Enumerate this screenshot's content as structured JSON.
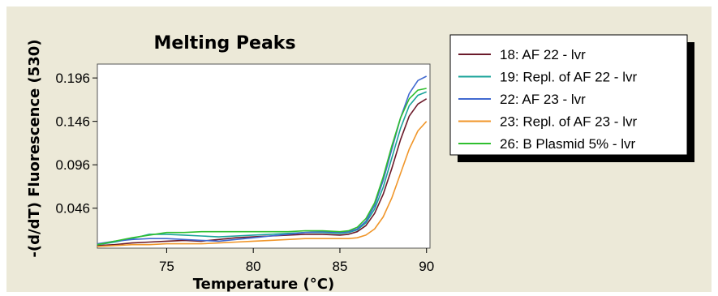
{
  "chart_data": {
    "type": "line",
    "title": "Melting Peaks",
    "xlabel": "Temperature (°C)",
    "ylabel": "-(d/dT) Fluorescence (530)",
    "xlim": [
      71,
      90.2
    ],
    "ylim": [
      0,
      0.212
    ],
    "xticks": [
      75,
      80,
      85,
      90
    ],
    "yticks": [
      0.046,
      0.096,
      0.146,
      0.196
    ],
    "ytick_labels": [
      "0.046",
      "0.096",
      "0.146",
      "0.196"
    ],
    "grid": false,
    "legend_position": "top-right",
    "series": [
      {
        "name": "18: AF 22 - lvr",
        "color": "#6b1a2a",
        "x": [
          71,
          72,
          73,
          74,
          75,
          76,
          77,
          78,
          79,
          80,
          81,
          82,
          83,
          84,
          85,
          85.5,
          86,
          86.5,
          87,
          87.5,
          88,
          88.5,
          89,
          89.5,
          90
        ],
        "y": [
          0.003,
          0.004,
          0.006,
          0.007,
          0.008,
          0.009,
          0.008,
          0.01,
          0.012,
          0.013,
          0.014,
          0.015,
          0.016,
          0.016,
          0.015,
          0.016,
          0.019,
          0.026,
          0.04,
          0.062,
          0.092,
          0.125,
          0.152,
          0.166,
          0.172
        ]
      },
      {
        "name": "19: Repl. of AF 22 - lvr",
        "color": "#1aa39a",
        "x": [
          71,
          72,
          73,
          74,
          75,
          76,
          77,
          78,
          79,
          80,
          81,
          82,
          83,
          84,
          85,
          85.5,
          86,
          86.5,
          87,
          87.5,
          88,
          88.5,
          89,
          89.5,
          90
        ],
        "y": [
          0.004,
          0.007,
          0.011,
          0.016,
          0.016,
          0.015,
          0.014,
          0.013,
          0.014,
          0.015,
          0.016,
          0.017,
          0.018,
          0.018,
          0.017,
          0.018,
          0.021,
          0.029,
          0.045,
          0.07,
          0.104,
          0.138,
          0.164,
          0.176,
          0.18
        ]
      },
      {
        "name": "22: AF 23 - lvr",
        "color": "#4169d0",
        "x": [
          71,
          72,
          73,
          74,
          75,
          76,
          77,
          78,
          79,
          80,
          81,
          82,
          83,
          84,
          85,
          85.5,
          86,
          86.5,
          87,
          87.5,
          88,
          88.5,
          89,
          89.5,
          90
        ],
        "y": [
          0.005,
          0.008,
          0.01,
          0.011,
          0.011,
          0.01,
          0.009,
          0.008,
          0.01,
          0.012,
          0.014,
          0.016,
          0.018,
          0.019,
          0.018,
          0.019,
          0.022,
          0.031,
          0.049,
          0.078,
          0.114,
          0.15,
          0.178,
          0.193,
          0.198
        ]
      },
      {
        "name": "23: Repl. of AF 23 - lvr",
        "color": "#f0962a",
        "x": [
          71,
          72,
          73,
          74,
          75,
          76,
          77,
          78,
          79,
          80,
          81,
          82,
          83,
          84,
          85,
          85.5,
          86,
          86.5,
          87,
          87.5,
          88,
          88.5,
          89,
          89.5,
          90
        ],
        "y": [
          0.002,
          0.003,
          0.004,
          0.004,
          0.005,
          0.005,
          0.005,
          0.006,
          0.007,
          0.008,
          0.009,
          0.01,
          0.011,
          0.011,
          0.011,
          0.011,
          0.012,
          0.015,
          0.022,
          0.036,
          0.058,
          0.086,
          0.114,
          0.135,
          0.146
        ]
      },
      {
        "name": "26: B Plasmid 5% - lvr",
        "color": "#2fbf2f",
        "x": [
          71,
          72,
          73,
          74,
          75,
          76,
          77,
          78,
          79,
          80,
          81,
          82,
          83,
          84,
          85,
          85.5,
          86,
          86.5,
          87,
          87.5,
          88,
          88.5,
          89,
          89.5,
          90
        ],
        "y": [
          0.004,
          0.008,
          0.012,
          0.015,
          0.018,
          0.018,
          0.019,
          0.019,
          0.019,
          0.019,
          0.019,
          0.019,
          0.02,
          0.02,
          0.019,
          0.02,
          0.024,
          0.034,
          0.052,
          0.082,
          0.118,
          0.15,
          0.172,
          0.182,
          0.184
        ]
      }
    ]
  }
}
